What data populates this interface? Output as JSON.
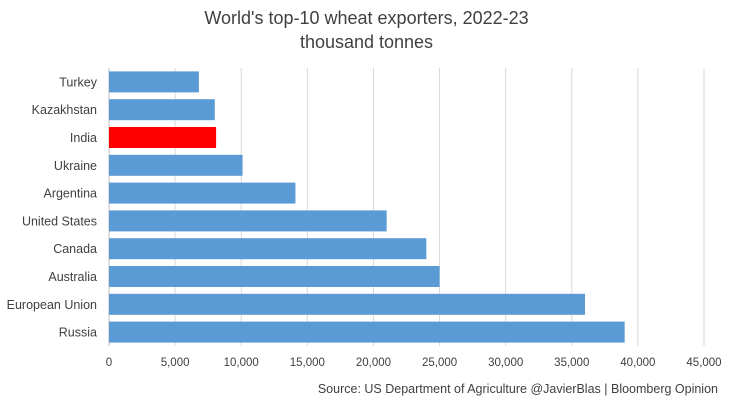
{
  "chart_data": {
    "type": "bar",
    "orientation": "horizontal",
    "title": "World's top-10 wheat exporters, 2022-23",
    "subtitle": "thousand tonnes",
    "categories": [
      "Turkey",
      "Kazakhstan",
      "India",
      "Ukraine",
      "Argentina",
      "United States",
      "Canada",
      "Australia",
      "European Union",
      "Russia"
    ],
    "values": [
      6800,
      8000,
      8100,
      10100,
      14100,
      21000,
      24000,
      25000,
      36000,
      39000
    ],
    "highlight": "India",
    "xlim": [
      0,
      45000
    ],
    "xticks": [
      0,
      5000,
      10000,
      15000,
      20000,
      25000,
      30000,
      35000,
      40000,
      45000
    ],
    "xtick_labels": [
      "0",
      "5,000",
      "10,000",
      "15,000",
      "20,000",
      "25,000",
      "30,000",
      "35,000",
      "40,000",
      "45,000"
    ],
    "grid": "vertical",
    "xlabel": "",
    "ylabel": "",
    "source": "Source: US Department of Agriculture   @JavierBlas | Bloomberg Opinion"
  },
  "colors": {
    "bar": "#5b9bd5",
    "highlight": "#ff0000",
    "grid": "#d9d9d9",
    "text": "#404040"
  }
}
